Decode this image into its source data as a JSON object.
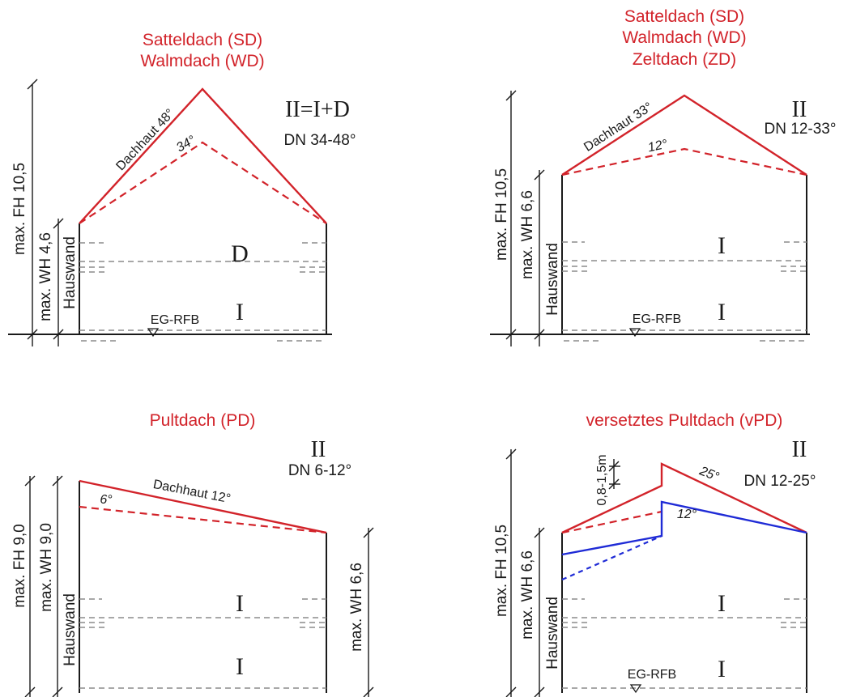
{
  "panels": [
    {
      "titles": [
        "Satteldach (SD)",
        "Walmdach (WD)"
      ],
      "storeys": "II=I+D",
      "pitch": "DN 34-48°",
      "roof_skin": "Dachhaut 48°",
      "inner_angle": "34°",
      "fh": "max. FH 10,5",
      "wh": "max. WH 4,6",
      "wall": "Hauswand",
      "floor_top": "D",
      "floor_bottom": "I",
      "ground": "EG-RFB"
    },
    {
      "titles": [
        "Satteldach (SD)",
        "Walmdach (WD)",
        "Zeltdach (ZD)"
      ],
      "storeys": "II",
      "pitch": "DN 12-33°",
      "roof_skin": "Dachhaut 33°",
      "inner_angle": "12°",
      "fh": "max. FH 10,5",
      "wh": "max. WH 6,6",
      "wall": "Hauswand",
      "floor_top": "I",
      "floor_bottom": "I",
      "ground": "EG-RFB"
    },
    {
      "titles": [
        "Pultdach (PD)"
      ],
      "storeys": "II",
      "pitch": "DN 6-12°",
      "roof_skin": "Dachhaut 12°",
      "inner_angle": "6°",
      "fh": "max. FH 9,0",
      "wh": "max. WH 9,0",
      "wall": "Hauswand",
      "wh_right": "max. WH 6,6",
      "floor_top": "I",
      "floor_bottom": "I"
    },
    {
      "titles": [
        "versetztes Pultdach (vPD)"
      ],
      "storeys": "II",
      "pitch": "DN 12-25°",
      "roof_angle": "25°",
      "inner_angle": "12°",
      "offset": "0,8-1,5m",
      "fh": "max. FH 10,5",
      "wh": "max. WH 6,6",
      "wall": "Hauswand",
      "floor_top": "I",
      "floor_bottom": "I",
      "ground": "EG-RFB"
    }
  ],
  "colors": {
    "roof": "#d2232a",
    "blue": "#1f2bd6",
    "line": "#1a1a1a",
    "dashed": "#8c8c8c"
  }
}
